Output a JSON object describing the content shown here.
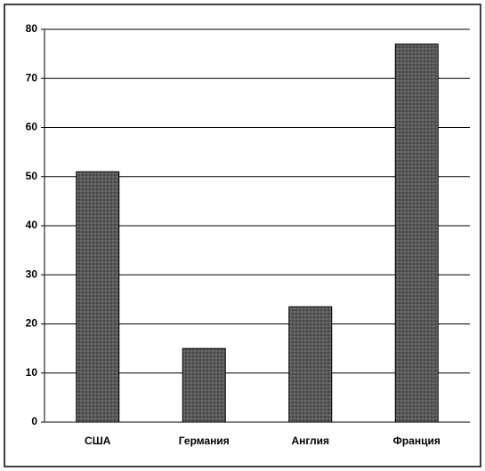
{
  "chart_data": {
    "type": "bar",
    "categories": [
      "США",
      "Германия",
      "Англия",
      "Франция"
    ],
    "values": [
      51,
      15,
      23.5,
      77
    ],
    "color": "#5a5a5a",
    "ylim": [
      0,
      80
    ],
    "yticks": [
      0,
      10,
      20,
      30,
      40,
      50,
      60,
      70,
      80
    ],
    "grid": true
  }
}
